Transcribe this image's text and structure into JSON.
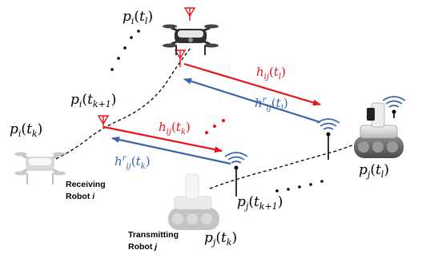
{
  "colors": {
    "red": "#e8141b",
    "blue": "#3a63a9",
    "black": "#000000"
  },
  "robot_i": {
    "label_line1": "Receiving",
    "label_line2": "Robot",
    "label_index": "i",
    "positions": [
      {
        "base": "p",
        "sub": "i",
        "arg": "t",
        "arg_sub": "l"
      },
      {
        "base": "p",
        "sub": "i",
        "arg": "t",
        "arg_sub": "k+1"
      },
      {
        "base": "p",
        "sub": "i",
        "arg": "t",
        "arg_sub": "k"
      }
    ]
  },
  "robot_j": {
    "label_line1": "Transmitting",
    "label_line2": "Robot",
    "label_index": "j",
    "positions": [
      {
        "base": "p",
        "sub": "j",
        "arg": "t",
        "arg_sub": "l"
      },
      {
        "base": "p",
        "sub": "j",
        "arg": "t",
        "arg_sub": "k+1"
      },
      {
        "base": "p",
        "sub": "j",
        "arg": "t",
        "arg_sub": "k"
      }
    ]
  },
  "channels": {
    "forward_l": {
      "base": "h",
      "sub": "ij",
      "arg": "t",
      "arg_sub": "l"
    },
    "reverse_l": {
      "base": "h",
      "sup": "r",
      "sub": "ij",
      "arg": "t",
      "arg_sub": "l"
    },
    "forward_k": {
      "base": "h",
      "sub": "ij",
      "arg": "t",
      "arg_sub": "k"
    },
    "reverse_k": {
      "base": "h",
      "sup": "r",
      "sub": "ij",
      "arg": "t",
      "arg_sub": "k"
    }
  },
  "icons": [
    "drone-icon",
    "ground-robot-icon",
    "antenna-icon",
    "wifi-signal-icon"
  ]
}
